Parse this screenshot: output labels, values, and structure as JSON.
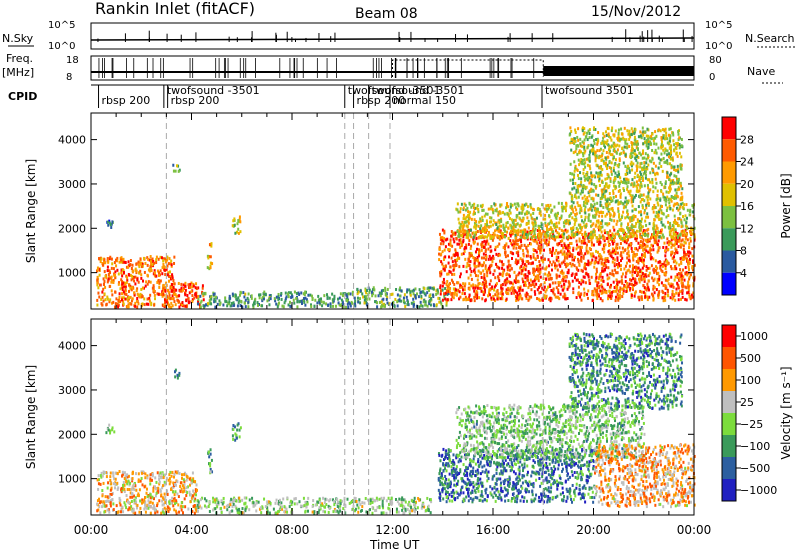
{
  "header": {
    "station": "Rankin Inlet (fitACF)",
    "beam": "Beam 08",
    "date": "15/Nov/2012"
  },
  "top_panels": {
    "nsky_label": "N.Sky",
    "nsky_ticks": [
      "10^5",
      "10^0"
    ],
    "nsky_right_ticks": [
      "10^5",
      "10^0"
    ],
    "nsearch_label": "N.Search",
    "freq_label": [
      "Freq.",
      "[MHz]"
    ],
    "freq_ticks": [
      "18",
      "8"
    ],
    "nave_ticks": [
      "80",
      "0"
    ],
    "nave_label": "Nave",
    "cpid_label": "CPID",
    "cpid_entries": [
      {
        "t": 0.3,
        "label": "rbsp 200",
        "row": 2
      },
      {
        "t": 2.9,
        "label": "twofsound -3501",
        "row": 1
      },
      {
        "t": 3.05,
        "label": "rbsp 200",
        "row": 2
      },
      {
        "t": 10.1,
        "label": "twofsound -3501",
        "row": 1
      },
      {
        "t": 10.45,
        "label": "rbsp 200",
        "row": 2
      },
      {
        "t": 11.05,
        "label": "twofsound -3501",
        "row": 1
      },
      {
        "t": 11.9,
        "label": "normal 150",
        "row": 2
      },
      {
        "t": 17.95,
        "label": "twofsound 3501",
        "row": 1
      }
    ]
  },
  "colors": {
    "power": [
      "#ff0000",
      "#ff5a00",
      "#ff9a00",
      "#e0c000",
      "#7cc040",
      "#3a9a5a",
      "#2a5aa0",
      "#0000ff"
    ],
    "velocity": [
      "#ff0000",
      "#ff5500",
      "#ff9900",
      "#bfbfbf",
      "#7cdc3c",
      "#3a9a5a",
      "#2c5fa0",
      "#2020c0"
    ],
    "grey": "#c0c0c0"
  },
  "chart_data": [
    {
      "type": "heatmap",
      "title": "Power",
      "xlabel": "Time UT",
      "ylabel": "Slant Range [km]",
      "xlim": [
        0,
        24
      ],
      "ylim": [
        180,
        4600
      ],
      "x_ticks": [
        "00:00",
        "04:00",
        "08:00",
        "12:00",
        "16:00",
        "20:00",
        "00:00"
      ],
      "y_ticks": [
        1000,
        2000,
        3000,
        4000
      ],
      "colorbar_label": "Power [dB]",
      "colorbar_ticks": [
        "28",
        "24",
        "20",
        "16",
        "12",
        "8",
        "4"
      ],
      "regions": [
        {
          "t0": 0.2,
          "t1": 3.3,
          "r0": 250,
          "r1": 1400,
          "level": 0.8
        },
        {
          "t0": 2.8,
          "t1": 4.5,
          "r0": 250,
          "r1": 800,
          "level": 0.9
        },
        {
          "t0": 4.2,
          "t1": 10.5,
          "r0": 250,
          "r1": 600,
          "level": 0.3
        },
        {
          "t0": 10.5,
          "t1": 14.2,
          "r0": 250,
          "r1": 700,
          "level": 0.35
        },
        {
          "t0": 13.8,
          "t1": 24,
          "r0": 400,
          "r1": 2000,
          "level": 0.85
        },
        {
          "t0": 14.5,
          "t1": 24,
          "r0": 1800,
          "r1": 2600,
          "level": 0.55
        },
        {
          "t0": 19.0,
          "t1": 23.5,
          "r0": 2600,
          "r1": 4300,
          "level": 0.5
        },
        {
          "t0": 0.5,
          "t1": 0.9,
          "r0": 2050,
          "r1": 2250,
          "level": 0.2
        },
        {
          "t0": 3.2,
          "t1": 3.5,
          "r0": 3300,
          "r1": 3500,
          "level": 0.4
        },
        {
          "t0": 4.6,
          "t1": 4.8,
          "r0": 1100,
          "r1": 1700,
          "level": 0.6
        },
        {
          "t0": 5.6,
          "t1": 5.95,
          "r0": 1900,
          "r1": 2300,
          "level": 0.5
        }
      ]
    },
    {
      "type": "heatmap",
      "title": "Velocity",
      "xlabel": "Time UT",
      "ylabel": "Slant Range [km]",
      "xlim": [
        0,
        24
      ],
      "ylim": [
        180,
        4600
      ],
      "x_ticks": [
        "00:00",
        "04:00",
        "08:00",
        "12:00",
        "16:00",
        "20:00",
        "00:00"
      ],
      "y_ticks": [
        1000,
        2000,
        3000,
        4000
      ],
      "colorbar_label": "Velocity [m s⁻¹]",
      "colorbar_ticks": [
        "1000",
        "500",
        "100",
        "25",
        "−25",
        "−100",
        "−500",
        "−1000"
      ],
      "regions": [
        {
          "t0": 0.2,
          "t1": 4.2,
          "r0": 250,
          "r1": 1200,
          "level": 0.65
        },
        {
          "t0": 4.2,
          "t1": 13.5,
          "r0": 250,
          "r1": 600,
          "level": 0.45
        },
        {
          "t0": 13.8,
          "t1": 20.0,
          "r0": 500,
          "r1": 1700,
          "level": 0.2
        },
        {
          "t0": 14.5,
          "t1": 22.0,
          "r0": 1500,
          "r1": 2700,
          "level": 0.42
        },
        {
          "t0": 20.0,
          "t1": 24,
          "r0": 400,
          "r1": 1800,
          "level": 0.7
        },
        {
          "t0": 19.0,
          "t1": 23.5,
          "r0": 2600,
          "r1": 4300,
          "level": 0.25
        },
        {
          "t0": 0.5,
          "t1": 0.9,
          "r0": 2050,
          "r1": 2250,
          "level": 0.42
        },
        {
          "t0": 3.2,
          "t1": 3.5,
          "r0": 3300,
          "r1": 3500,
          "level": 0.3
        },
        {
          "t0": 4.6,
          "t1": 4.8,
          "r0": 1100,
          "r1": 1700,
          "level": 0.3
        },
        {
          "t0": 5.6,
          "t1": 5.95,
          "r0": 1900,
          "r1": 2300,
          "level": 0.3
        }
      ]
    }
  ]
}
